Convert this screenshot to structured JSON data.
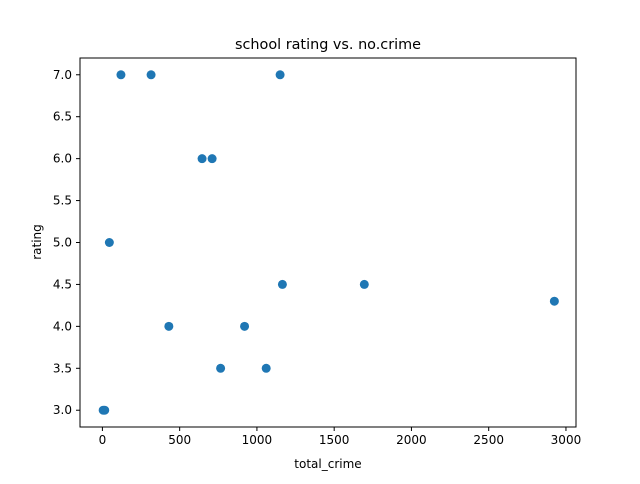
{
  "chart_data": {
    "type": "scatter",
    "title": "school rating vs. no.crime",
    "xlabel": "total_crime",
    "ylabel": "rating",
    "xlim": [
      -145,
      3065
    ],
    "ylim": [
      2.8,
      7.2
    ],
    "x_ticks": [
      0,
      500,
      1000,
      1500,
      2000,
      2500,
      3000
    ],
    "y_ticks": [
      3.0,
      3.5,
      4.0,
      4.5,
      5.0,
      5.5,
      6.0,
      6.5,
      7.0
    ],
    "x_tick_labels": [
      "0",
      "500",
      "1000",
      "1500",
      "2000",
      "2500",
      "3000"
    ],
    "y_tick_labels": [
      "3.0",
      "3.5",
      "4.0",
      "4.5",
      "5.0",
      "5.5",
      "6.0",
      "6.5",
      "7.0"
    ],
    "grid": false,
    "marker_color": "#1f77b4",
    "points": [
      {
        "x": 5,
        "y": 3.0
      },
      {
        "x": 15,
        "y": 3.0
      },
      {
        "x": 45,
        "y": 5.0
      },
      {
        "x": 120,
        "y": 7.0
      },
      {
        "x": 315,
        "y": 7.0
      },
      {
        "x": 430,
        "y": 4.0
      },
      {
        "x": 645,
        "y": 6.0
      },
      {
        "x": 710,
        "y": 6.0
      },
      {
        "x": 765,
        "y": 3.5
      },
      {
        "x": 920,
        "y": 4.0
      },
      {
        "x": 1060,
        "y": 3.5
      },
      {
        "x": 1150,
        "y": 7.0
      },
      {
        "x": 1165,
        "y": 4.5
      },
      {
        "x": 1695,
        "y": 4.5
      },
      {
        "x": 2925,
        "y": 4.3
      }
    ]
  }
}
